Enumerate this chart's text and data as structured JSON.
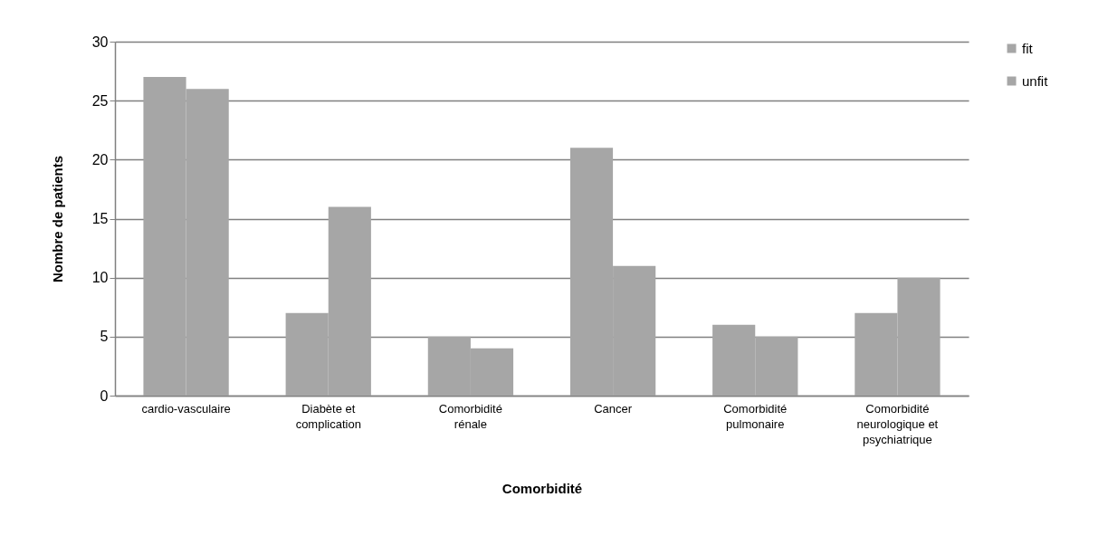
{
  "chart_data": {
    "type": "bar",
    "xlabel": "Comorbidité",
    "ylabel": "Nombre de patients",
    "categories": [
      "cardio-vasculaire",
      "Diabète et complication",
      "Comorbidité rénale",
      "Cancer",
      "Comorbidité pulmonaire",
      "Comorbidité neurologique et psychiatrique"
    ],
    "series": [
      {
        "name": "fit",
        "color": "#a6a6a6",
        "values": [
          27,
          7,
          5,
          21,
          6,
          7
        ]
      },
      {
        "name": "unfit",
        "color": "#a6a6a6",
        "values": [
          26,
          16,
          4,
          11,
          5,
          10
        ]
      }
    ],
    "ylim": [
      0,
      30
    ],
    "yticks": [
      0,
      5,
      10,
      15,
      20,
      25,
      30
    ],
    "grid": "y",
    "legend": "right"
  }
}
